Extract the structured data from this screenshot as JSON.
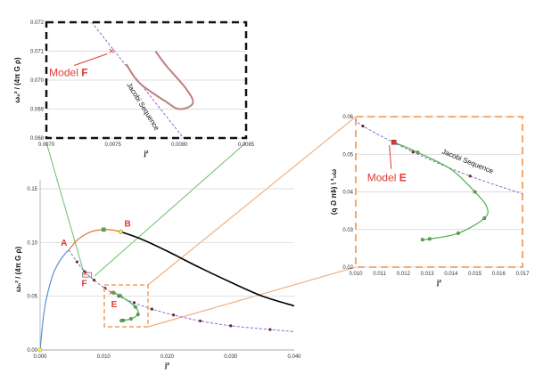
{
  "colors": {
    "jacobi": "#7a5cc0",
    "blue": "#5b8fd6",
    "orange": "#e0742a",
    "black": "#000000",
    "green": "#4caf50",
    "inset_curve": "#c08080",
    "red": "#e03a2f",
    "frame_orange": "#f0a060"
  },
  "chart_data": [
    {
      "id": "main",
      "type": "line",
      "xlabel": "j²",
      "ylabel": "ω₀² / (4π G ρ)",
      "xlim": [
        0,
        0.04
      ],
      "ylim": [
        0,
        0.15
      ],
      "xticks": [
        "0.000",
        "0.010",
        "0.020",
        "0.030",
        "0.040"
      ],
      "yticks": [
        "0.00",
        "0.05",
        "0.10",
        "0.15"
      ],
      "grid": true,
      "labels": [
        {
          "text": "A",
          "x": 0.0045,
          "y": 0.093
        },
        {
          "text": "B",
          "x": 0.0127,
          "y": 0.11
        },
        {
          "text": "E",
          "x": 0.0116,
          "y": 0.0532
        },
        {
          "text": "F",
          "x": 0.0075,
          "y": 0.071
        }
      ],
      "series": [
        {
          "key": "jacobi",
          "style": "dashed",
          "x": [
            0.0045,
            0.0058,
            0.007,
            0.0085,
            0.0102,
            0.0124,
            0.0148,
            0.0176,
            0.021,
            0.0252,
            0.03,
            0.0362,
            0.04
          ],
          "y": [
            0.093,
            0.082,
            0.073,
            0.065,
            0.0575,
            0.05,
            0.044,
            0.038,
            0.0325,
            0.027,
            0.0225,
            0.019,
            0.017
          ]
        },
        {
          "key": "blue",
          "x": [
            0,
            0.0005,
            0.001,
            0.002,
            0.003,
            0.004,
            0.0045
          ],
          "y": [
            0,
            0.03,
            0.048,
            0.07,
            0.082,
            0.09,
            0.093
          ]
        },
        {
          "key": "orange",
          "x": [
            0.0045,
            0.006,
            0.008,
            0.01,
            0.0115,
            0.0127
          ],
          "y": [
            0.093,
            0.103,
            0.11,
            0.112,
            0.1115,
            0.11
          ]
        },
        {
          "key": "black",
          "x": [
            0.0127,
            0.016,
            0.02,
            0.025,
            0.03,
            0.035,
            0.04
          ],
          "y": [
            0.11,
            0.103,
            0.092,
            0.077,
            0.063,
            0.05,
            0.041
          ]
        },
        {
          "key": "green",
          "x": [
            0.0116,
            0.0126,
            0.015,
            0.0154,
            0.0143,
            0.0131,
            0.0128
          ],
          "y": [
            0.0532,
            0.0505,
            0.04,
            0.033,
            0.029,
            0.0275,
            0.0273
          ]
        }
      ]
    },
    {
      "id": "inset_f",
      "type": "line",
      "xlabel": "j²",
      "ylabel": "ω₀² / (4π G ρ)",
      "xlim": [
        0.007,
        0.0085
      ],
      "ylim": [
        0.068,
        0.072
      ],
      "xticks": [
        "0.0070",
        "0.0075",
        "0.0080",
        "0.0085"
      ],
      "yticks": [
        "0.068",
        "0.069",
        "0.070",
        "0.071",
        "0.072"
      ],
      "grid": true,
      "annotations": {
        "model": "Model",
        "model_letter": "F",
        "sequence": "Jacobi Sequence"
      },
      "model_point": {
        "x": 0.00749,
        "y": 0.071
      },
      "series": [
        {
          "key": "jacobi",
          "style": "dashed",
          "x": [
            0.00734,
            0.00803
          ],
          "y": [
            0.072,
            0.068
          ]
        },
        {
          "key": "inset_curve",
          "x": [
            0.0076,
            0.0077,
            0.0079,
            0.008,
            0.0081,
            0.00805,
            0.0079,
            0.00782
          ],
          "y": [
            0.07055,
            0.0699,
            0.06925,
            0.069,
            0.0692,
            0.0697,
            0.0705,
            0.071
          ]
        }
      ]
    },
    {
      "id": "inset_e",
      "type": "line",
      "xlabel": "j²",
      "ylabel": "ω₀² / (4π G ρ)",
      "xlim": [
        0.01,
        0.017
      ],
      "ylim": [
        0.02,
        0.06
      ],
      "xticks": [
        "0.010",
        "0.011",
        "0.012",
        "0.013",
        "0.014",
        "0.015",
        "0.016",
        "0.017"
      ],
      "yticks": [
        "0.02",
        "0.03",
        "0.04",
        "0.05",
        "0.06"
      ],
      "grid": true,
      "annotations": {
        "model": "Model",
        "model_letter": "E",
        "sequence": "Jacobi Sequence"
      },
      "model_point": {
        "x": 0.0116,
        "y": 0.0532
      },
      "series": [
        {
          "key": "jacobi",
          "style": "dashed",
          "x": [
            0.01,
            0.0103,
            0.0124,
            0.0148,
            0.017
          ],
          "y": [
            0.0595,
            0.0575,
            0.0506,
            0.0442,
            0.0395
          ]
        },
        {
          "key": "green",
          "x": [
            0.0116,
            0.0126,
            0.014,
            0.015,
            0.0155,
            0.0154,
            0.0143,
            0.0131,
            0.0128
          ],
          "y": [
            0.0532,
            0.0505,
            0.046,
            0.04,
            0.036,
            0.033,
            0.029,
            0.0275,
            0.0273
          ]
        }
      ]
    }
  ]
}
